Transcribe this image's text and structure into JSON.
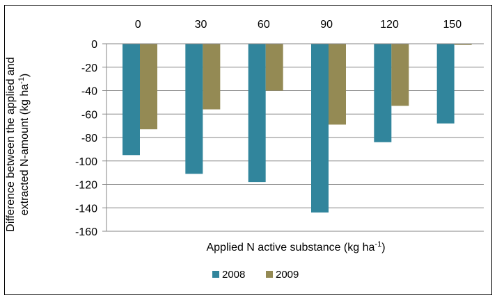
{
  "chart_data": {
    "type": "bar",
    "categories": [
      "0",
      "30",
      "60",
      "90",
      "120",
      "150"
    ],
    "series": [
      {
        "name": "2008",
        "color": "#31859C",
        "values": [
          -95,
          -111,
          -118,
          -144,
          -84,
          -68
        ]
      },
      {
        "name": "2009",
        "color": "#948A54",
        "values": [
          -73,
          -56,
          -40,
          -69,
          -53,
          -1
        ]
      }
    ],
    "xlabel": {
      "main": "Applied N active substance (kg ha",
      "sup": "-1",
      "end": ")"
    },
    "ylabel": {
      "line1": "Difference between the applied and",
      "line2_main": "extracted N-amount (kg ha",
      "line2_sup": "-1",
      "line2_end": ")"
    },
    "ylim": [
      -160,
      0
    ],
    "yticks": [
      "0",
      "-20",
      "-40",
      "-60",
      "-80",
      "-100",
      "-120",
      "-140",
      "-160"
    ],
    "x_tick_labels_position": "top",
    "grid": true,
    "legend_position": "bottom"
  }
}
